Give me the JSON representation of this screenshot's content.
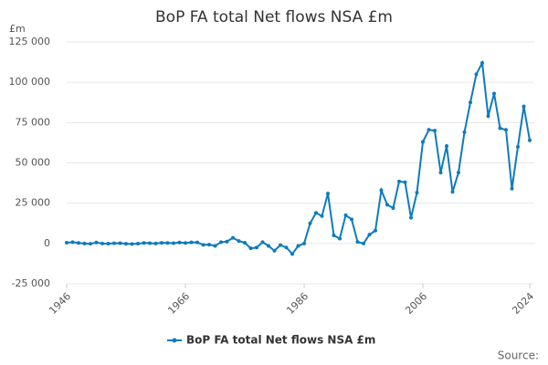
{
  "chart_data": {
    "type": "line",
    "title": "BoP FA total Net flows NSA £m",
    "y_label": "£m",
    "source": "Source:",
    "x": [
      1946,
      1947,
      1948,
      1949,
      1950,
      1951,
      1952,
      1953,
      1954,
      1955,
      1956,
      1957,
      1958,
      1959,
      1960,
      1961,
      1962,
      1963,
      1964,
      1965,
      1966,
      1967,
      1968,
      1969,
      1970,
      1971,
      1972,
      1973,
      1974,
      1975,
      1976,
      1977,
      1978,
      1979,
      1980,
      1981,
      1982,
      1983,
      1984,
      1985,
      1986,
      1987,
      1988,
      1989,
      1990,
      1991,
      1992,
      1993,
      1994,
      1995,
      1996,
      1997,
      1998,
      1999,
      2000,
      2001,
      2002,
      2003,
      2004,
      2005,
      2006,
      2007,
      2008,
      2009,
      2010,
      2011,
      2012,
      2013,
      2014,
      2015,
      2016,
      2017,
      2018,
      2019,
      2020,
      2021,
      2022,
      2023,
      2024
    ],
    "series": [
      {
        "name": "BoP FA total Net flows NSA £m",
        "color": "#0e7bbd",
        "values": [
          500,
          800,
          300,
          0,
          -200,
          600,
          0,
          -100,
          100,
          200,
          -200,
          -300,
          -100,
          300,
          200,
          0,
          400,
          300,
          200,
          600,
          300,
          700,
          700,
          -900,
          -700,
          -1500,
          800,
          1200,
          3500,
          1500,
          500,
          -3000,
          -2500,
          800,
          -1500,
          -4500,
          -1000,
          -2500,
          -6500,
          -1500,
          0,
          12500,
          19000,
          17000,
          31000,
          5000,
          3000,
          17500,
          15000,
          1000,
          0,
          5500,
          8000,
          33000,
          24000,
          22000,
          38500,
          38000,
          16000,
          31500,
          63000,
          70500,
          70000,
          44000,
          60500,
          32000,
          44000,
          69000,
          87500,
          105000,
          112000,
          79000,
          93000,
          71500,
          70500,
          34000,
          60000,
          85000,
          64000
        ]
      }
    ],
    "xlim": [
      1946,
      2024
    ],
    "xticks": [
      1946,
      1966,
      1986,
      2006,
      2024
    ],
    "ylim": [
      -25000,
      125000
    ],
    "yticks": [
      {
        "value": -25000,
        "label": "-25 000"
      },
      0,
      {
        "value": 25000,
        "label": "25 000"
      },
      {
        "value": 50000,
        "label": "50 000"
      },
      {
        "value": 75000,
        "label": "75 000"
      },
      {
        "value": 100000,
        "label": "100 000"
      },
      {
        "value": 125000,
        "label": "125 000"
      }
    ],
    "grid": true
  }
}
